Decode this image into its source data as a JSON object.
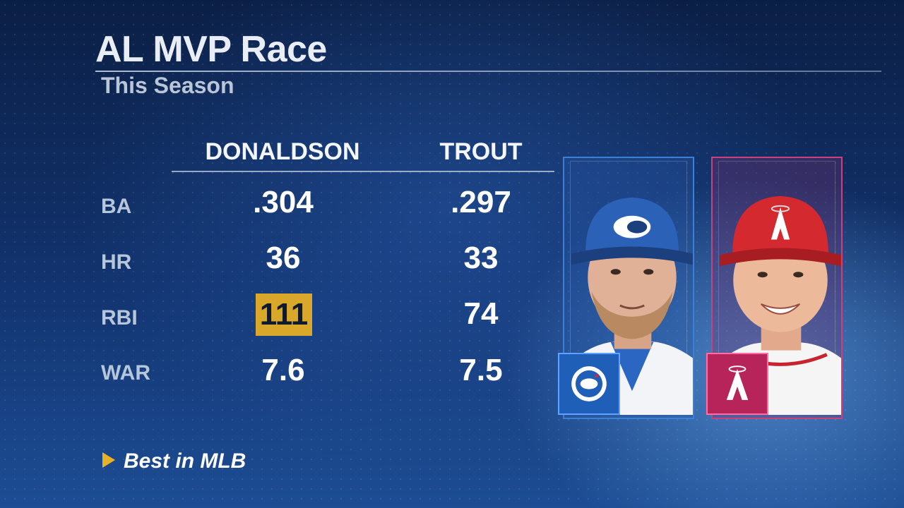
{
  "title": "AL MVP Race",
  "subtitle": "This Season",
  "players": [
    {
      "name": "DONALDSON",
      "team": "Toronto Blue Jays",
      "logo": "blue-jays-logo",
      "color": "#1f5fb8"
    },
    {
      "name": "TROUT",
      "team": "Los Angeles Angels",
      "logo": "angels-logo",
      "color": "#b7245a"
    }
  ],
  "stats": [
    {
      "label": "BA",
      "values": [
        ".304",
        ".297"
      ],
      "best": null
    },
    {
      "label": "HR",
      "values": [
        "36",
        "33"
      ],
      "best": null
    },
    {
      "label": "RBI",
      "values": [
        "111",
        "74"
      ],
      "best": 0
    },
    {
      "label": "WAR",
      "values": [
        "7.6",
        "7.5"
      ],
      "best": null
    }
  ],
  "legend": {
    "label": "Best in MLB",
    "highlight_color": "#d9a72a",
    "icon": "triangle-icon"
  }
}
